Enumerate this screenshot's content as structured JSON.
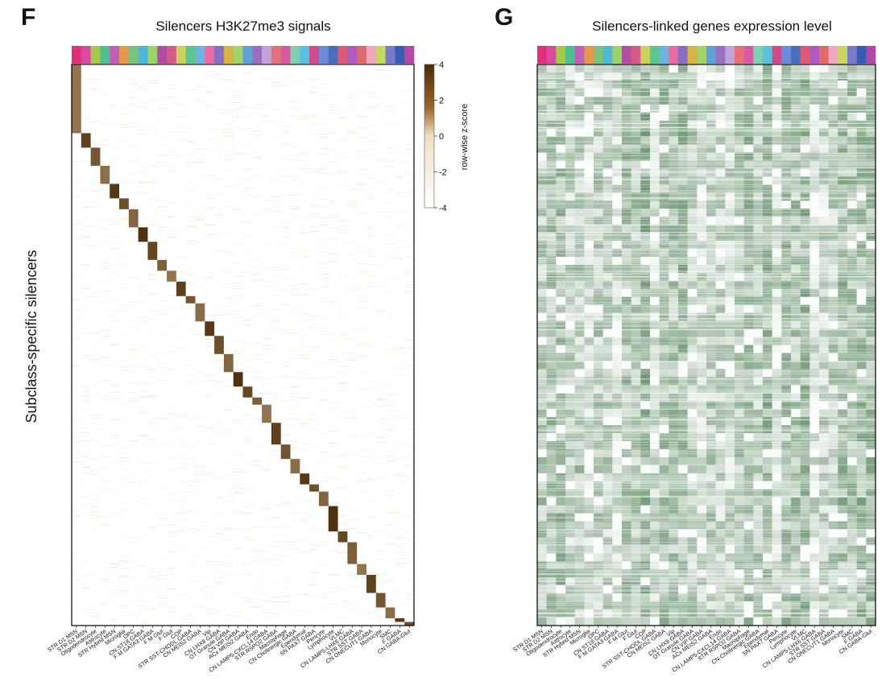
{
  "chart_data": [
    {
      "panel": "F",
      "type": "heatmap",
      "title": "Silencers H3K27me3 signals",
      "ylabel": "Subclass-specific silencers",
      "colorbar": {
        "label": "row-wise z-score",
        "ticks": [
          4,
          2,
          0,
          -2,
          -4
        ],
        "range": [
          -4,
          4
        ],
        "low_color": "#ffffff",
        "high_color": "#4a2a08"
      },
      "columns": [
        "STR D1 MSN",
        "STR D2 MSN",
        "Oligodendrocyte",
        "Astrocyte",
        "STR Hybrid MSN",
        "Microglia",
        "OPC",
        "CN ST18 GABA",
        "F M GATA3 GABA",
        "F M Glut",
        "F Glut",
        "COP",
        "STR SST-CHODL GABA",
        "CN MEIS2 GABA",
        "Vip",
        "CN LHX8 GABA",
        "OT Granule GABA",
        "CN VIP GABA",
        "ACx MEIS2 GABA",
        "Endo",
        "CN LAMP5-CXCL14 GABA",
        "STR RSPO2 GABA",
        "Macrophage",
        "CN Cholinergic GABA",
        "Ependymal",
        "SN PAX7 GABA",
        "Pericyte",
        "Lymphocyte",
        "VLMC",
        "CN LAMP5-LHX6 GABA",
        "STR SST GABA",
        "CN ONECUT1 GABA",
        "Monocyte",
        "SMC",
        "F GABA",
        "CN GABA-Glut"
      ],
      "column_colors": [
        "#e0307c",
        "#d94aa3",
        "#a6c94c",
        "#4fbf8f",
        "#c062b4",
        "#e8984a",
        "#7bc27c",
        "#4fb8d6",
        "#9bd36a",
        "#b04fa0",
        "#d65a8a",
        "#c7d35a",
        "#5bc48f",
        "#6fb3e0",
        "#e96aa0",
        "#8a6fc0",
        "#d9b24a",
        "#a0d36a",
        "#5fa0d8",
        "#9a6fbf",
        "#c2a3d9",
        "#e3707a",
        "#d85aa0",
        "#7fd0b0",
        "#5ac0e0",
        "#d24a8a",
        "#6f8ad8",
        "#4a6fc0",
        "#d95a7a",
        "#b05ac0",
        "#e06a6a",
        "#f0a8c0",
        "#c8d85a",
        "#7a7ac8",
        "#3a5ab8",
        "#b04aa8"
      ],
      "diagonal_block_rows": [
        95,
        115,
        140,
        165,
        185,
        200,
        225,
        245,
        270,
        285,
        300,
        320,
        330,
        355,
        375,
        400,
        425,
        445,
        460,
        470,
        495,
        525,
        545,
        565,
        580,
        590,
        610,
        645,
        660,
        690,
        705,
        730,
        750,
        765,
        770,
        775
      ],
      "n_rows": 775
    },
    {
      "panel": "G",
      "type": "heatmap",
      "title": "Silencers-linked genes expression level",
      "columns": [
        "STR D1 MSN",
        "STR D2 MSN",
        "Oligodendrocyte",
        "Astrocyte",
        "STR Hybrid MSN",
        "Microglia",
        "OPC",
        "CN ST18 GABA",
        "F M GATA3 GABA",
        "F M Glut",
        "F Glut",
        "COP",
        "STR SST-CHODL GABA",
        "CN MEIS2 GABA",
        "Vip",
        "CN LHX8 GABA",
        "OT Granule GABA",
        "CN VIP GABA",
        "ACx MEIS2 GABA",
        "Endo",
        "CN LAMP5-CXCL14 GABA",
        "STR RSPO2 GABA",
        "Macrophage",
        "CN Cholinergic GABA",
        "Ependymal",
        "SN PAX7 GABA",
        "Pericyte",
        "Lymphocyte",
        "VLMC",
        "CN LAMP5-LHX6 GABA",
        "STR SST GABA",
        "CN ONECUT1 GABA",
        "Monocyte",
        "SMC",
        "F GABA",
        "CN GABA-Glut"
      ],
      "low_color": "#ffffff",
      "high_color": "#2f6b36",
      "n_rows": 775
    }
  ]
}
